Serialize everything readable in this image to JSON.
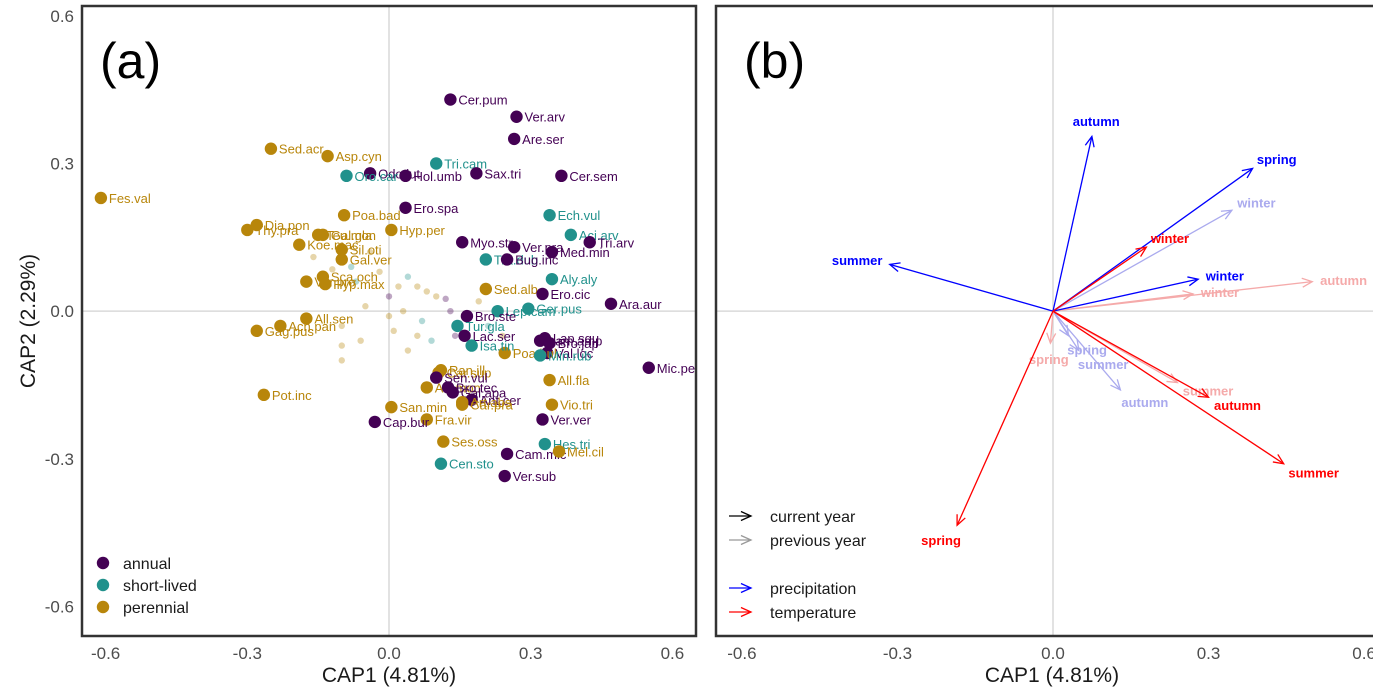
{
  "chart_data": [
    {
      "panel": "(a)",
      "type": "scatter",
      "xlabel": "CAP1 (4.81%)",
      "ylabel": "CAP2 (2.29%)",
      "xlim": [
        -0.65,
        0.65
      ],
      "ylim": [
        -0.66,
        0.62
      ],
      "xticks": [
        "-0.6",
        "-0.3",
        "0.0",
        "0.3",
        "0.6"
      ],
      "yticks": [
        "-0.6",
        "-0.3",
        "0.0",
        "0.3",
        "0.6"
      ],
      "grid": false,
      "legend_position": "bottom-left",
      "group_colors": {
        "annual": "#440154",
        "short-lived": "#21918c",
        "perennial": "#b8860b"
      },
      "legend": [
        "annual",
        "short-lived",
        "perennial"
      ],
      "points": [
        {
          "label": "Cer.pum",
          "x": 0.13,
          "y": 0.43,
          "group": "annual"
        },
        {
          "label": "Ver.arv",
          "x": 0.27,
          "y": 0.395,
          "group": "annual"
        },
        {
          "label": "Are.ser",
          "x": 0.265,
          "y": 0.35,
          "group": "annual"
        },
        {
          "label": "Sed.acr",
          "x": -0.25,
          "y": 0.33,
          "group": "perennial"
        },
        {
          "label": "Asp.cyn",
          "x": -0.13,
          "y": 0.315,
          "group": "perennial"
        },
        {
          "label": "Tri.cam",
          "x": 0.1,
          "y": 0.3,
          "group": "short-lived"
        },
        {
          "label": "Odo.lut",
          "x": -0.04,
          "y": 0.28,
          "group": "annual"
        },
        {
          "label": "Hol.umb",
          "x": 0.035,
          "y": 0.275,
          "group": "annual"
        },
        {
          "label": "Sax.tri",
          "x": 0.185,
          "y": 0.28,
          "group": "annual"
        },
        {
          "label": "Oro.car",
          "x": -0.09,
          "y": 0.275,
          "group": "short-lived"
        },
        {
          "label": "Cer.sem",
          "x": 0.365,
          "y": 0.275,
          "group": "annual"
        },
        {
          "label": "Fes.val",
          "x": -0.61,
          "y": 0.23,
          "group": "perennial"
        },
        {
          "label": "Ero.spa",
          "x": 0.035,
          "y": 0.21,
          "group": "annual"
        },
        {
          "label": "Thy.pra",
          "x": -0.3,
          "y": 0.165,
          "group": "perennial"
        },
        {
          "label": "Dia.pon",
          "x": -0.28,
          "y": 0.175,
          "group": "perennial"
        },
        {
          "label": "Teu.mon",
          "x": -0.15,
          "y": 0.155,
          "group": "perennial"
        },
        {
          "label": "Poa.bad",
          "x": -0.095,
          "y": 0.195,
          "group": "perennial"
        },
        {
          "label": "Koe.mac",
          "x": -0.19,
          "y": 0.135,
          "group": "perennial"
        },
        {
          "label": "Gal.gla",
          "x": -0.14,
          "y": 0.155,
          "group": "perennial"
        },
        {
          "label": "Hyp.per",
          "x": 0.005,
          "y": 0.165,
          "group": "perennial"
        },
        {
          "label": "Myo.str",
          "x": 0.155,
          "y": 0.14,
          "group": "annual"
        },
        {
          "label": "Ver.pra",
          "x": 0.265,
          "y": 0.13,
          "group": "annual"
        },
        {
          "label": "Ech.vul",
          "x": 0.34,
          "y": 0.195,
          "group": "short-lived"
        },
        {
          "label": "Aci.arv",
          "x": 0.385,
          "y": 0.155,
          "group": "short-lived"
        },
        {
          "label": "Tri.arv",
          "x": 0.425,
          "y": 0.14,
          "group": "annual"
        },
        {
          "label": "Med.min",
          "x": 0.345,
          "y": 0.12,
          "group": "annual"
        },
        {
          "label": "Sil.oti",
          "x": -0.1,
          "y": 0.125,
          "group": "perennial"
        },
        {
          "label": "Gal.ver",
          "x": -0.1,
          "y": 0.105,
          "group": "perennial"
        },
        {
          "label": "Tra.dub",
          "x": 0.205,
          "y": 0.105,
          "group": "short-lived"
        },
        {
          "label": "Ver.pro",
          "x": -0.175,
          "y": 0.06,
          "group": "perennial"
        },
        {
          "label": "Sca.och",
          "x": -0.14,
          "y": 0.07,
          "group": "perennial"
        },
        {
          "label": "Hyp.max",
          "x": -0.135,
          "y": 0.055,
          "group": "perennial"
        },
        {
          "label": "Bug.inc",
          "x": 0.25,
          "y": 0.105,
          "group": "annual"
        },
        {
          "label": "Aly.aly",
          "x": 0.345,
          "y": 0.065,
          "group": "short-lived"
        },
        {
          "label": "Sed.alb",
          "x": 0.205,
          "y": 0.045,
          "group": "perennial"
        },
        {
          "label": "Ero.cic",
          "x": 0.325,
          "y": 0.035,
          "group": "annual"
        },
        {
          "label": "Lep.cam",
          "x": 0.23,
          "y": 0.0,
          "group": "short-lived"
        },
        {
          "label": "Ger.pus",
          "x": 0.295,
          "y": 0.005,
          "group": "short-lived"
        },
        {
          "label": "Ara.aur",
          "x": 0.47,
          "y": 0.015,
          "group": "annual"
        },
        {
          "label": "Bro.ste",
          "x": 0.165,
          "y": -0.01,
          "group": "annual"
        },
        {
          "label": "All.sen",
          "x": -0.175,
          "y": -0.015,
          "group": "perennial"
        },
        {
          "label": "Ach.pan",
          "x": -0.23,
          "y": -0.03,
          "group": "perennial"
        },
        {
          "label": "Gag.pus",
          "x": -0.28,
          "y": -0.04,
          "group": "perennial"
        },
        {
          "label": "Tur.gla",
          "x": 0.145,
          "y": -0.03,
          "group": "short-lived"
        },
        {
          "label": "Lac.ser",
          "x": 0.16,
          "y": -0.05,
          "group": "annual"
        },
        {
          "label": "Lam.amp",
          "x": 0.32,
          "y": -0.06,
          "group": "annual"
        },
        {
          "label": "Lap.squ",
          "x": 0.33,
          "y": -0.055,
          "group": "annual"
        },
        {
          "label": "Bro.jap",
          "x": 0.34,
          "y": -0.065,
          "group": "annual"
        },
        {
          "label": "Val.loc",
          "x": 0.335,
          "y": -0.085,
          "group": "annual"
        },
        {
          "label": "Poa.bul",
          "x": 0.245,
          "y": -0.085,
          "group": "perennial"
        },
        {
          "label": "Isa.tin",
          "x": 0.175,
          "y": -0.07,
          "group": "short-lived"
        },
        {
          "label": "Min.rub",
          "x": 0.32,
          "y": -0.09,
          "group": "short-lived"
        },
        {
          "label": "Mic.per",
          "x": 0.55,
          "y": -0.115,
          "group": "annual"
        },
        {
          "label": "Ran.ill",
          "x": 0.11,
          "y": -0.12,
          "group": "perennial"
        },
        {
          "label": "Car.sup",
          "x": 0.105,
          "y": -0.125,
          "group": "perennial"
        },
        {
          "label": "Sen.vul",
          "x": 0.1,
          "y": -0.135,
          "group": "annual"
        },
        {
          "label": "Aly.mon",
          "x": 0.08,
          "y": -0.155,
          "group": "perennial"
        },
        {
          "label": "Bro.tec",
          "x": 0.125,
          "y": -0.155,
          "group": "annual"
        },
        {
          "label": "All.fla",
          "x": 0.34,
          "y": -0.14,
          "group": "perennial"
        },
        {
          "label": "Pot.inc",
          "x": -0.265,
          "y": -0.17,
          "group": "perennial"
        },
        {
          "label": "Gal.apa",
          "x": 0.135,
          "y": -0.165,
          "group": "annual"
        },
        {
          "label": "Ant.cer",
          "x": 0.175,
          "y": -0.18,
          "group": "annual"
        },
        {
          "label": "San.min",
          "x": 0.005,
          "y": -0.195,
          "group": "perennial"
        },
        {
          "label": "Art.abs",
          "x": 0.155,
          "y": -0.185,
          "group": "perennial"
        },
        {
          "label": "Car.pra",
          "x": 0.155,
          "y": -0.19,
          "group": "perennial"
        },
        {
          "label": "Vio.tri",
          "x": 0.345,
          "y": -0.19,
          "group": "perennial"
        },
        {
          "label": "Fra.vir",
          "x": 0.08,
          "y": -0.22,
          "group": "perennial"
        },
        {
          "label": "Ver.ver",
          "x": 0.325,
          "y": -0.22,
          "group": "annual"
        },
        {
          "label": "Cap.bur",
          "x": -0.03,
          "y": -0.225,
          "group": "annual"
        },
        {
          "label": "Ses.oss",
          "x": 0.115,
          "y": -0.265,
          "group": "perennial"
        },
        {
          "label": "Hes.tri",
          "x": 0.33,
          "y": -0.27,
          "group": "short-lived"
        },
        {
          "label": "Cam.mic",
          "x": 0.25,
          "y": -0.29,
          "group": "annual"
        },
        {
          "label": "Mel.cil",
          "x": 0.36,
          "y": -0.285,
          "group": "perennial"
        },
        {
          "label": "Cen.sto",
          "x": 0.11,
          "y": -0.31,
          "group": "short-lived"
        },
        {
          "label": "Ver.sub",
          "x": 0.245,
          "y": -0.335,
          "group": "annual"
        }
      ],
      "faint_points": [
        {
          "x": -0.16,
          "y": 0.11,
          "group": "perennial"
        },
        {
          "x": -0.12,
          "y": 0.085,
          "group": "perennial"
        },
        {
          "x": -0.08,
          "y": 0.09,
          "group": "short-lived"
        },
        {
          "x": -0.07,
          "y": 0.06,
          "group": "short-lived"
        },
        {
          "x": -0.02,
          "y": 0.08,
          "group": "perennial"
        },
        {
          "x": 0.02,
          "y": 0.05,
          "group": "perennial"
        },
        {
          "x": 0.04,
          "y": 0.07,
          "group": "short-lived"
        },
        {
          "x": 0.06,
          "y": 0.05,
          "group": "perennial"
        },
        {
          "x": 0.08,
          "y": 0.04,
          "group": "perennial"
        },
        {
          "x": 0.1,
          "y": 0.03,
          "group": "perennial"
        },
        {
          "x": 0.12,
          "y": 0.025,
          "group": "annual"
        },
        {
          "x": -0.05,
          "y": 0.01,
          "group": "perennial"
        },
        {
          "x": 0.0,
          "y": -0.01,
          "group": "perennial"
        },
        {
          "x": 0.03,
          "y": 0.0,
          "group": "perennial"
        },
        {
          "x": 0.07,
          "y": -0.02,
          "group": "short-lived"
        },
        {
          "x": -0.1,
          "y": -0.03,
          "group": "perennial"
        },
        {
          "x": -0.06,
          "y": -0.06,
          "group": "perennial"
        },
        {
          "x": -0.1,
          "y": -0.07,
          "group": "perennial"
        },
        {
          "x": -0.1,
          "y": -0.1,
          "group": "perennial"
        },
        {
          "x": 0.01,
          "y": -0.04,
          "group": "perennial"
        },
        {
          "x": 0.06,
          "y": -0.05,
          "group": "perennial"
        },
        {
          "x": 0.04,
          "y": -0.08,
          "group": "perennial"
        },
        {
          "x": 0.09,
          "y": -0.06,
          "group": "short-lived"
        },
        {
          "x": 0.14,
          "y": -0.05,
          "group": "annual"
        },
        {
          "x": 0.13,
          "y": 0.0,
          "group": "annual"
        },
        {
          "x": 0.19,
          "y": 0.02,
          "group": "perennial"
        },
        {
          "x": 0.21,
          "y": -0.03,
          "group": "short-lived"
        },
        {
          "x": 0.24,
          "y": -0.05,
          "group": "perennial"
        },
        {
          "x": -0.04,
          "y": 0.12,
          "group": "perennial"
        },
        {
          "x": 0.0,
          "y": 0.03,
          "group": "annual"
        }
      ]
    },
    {
      "panel": "(b)",
      "type": "biplot",
      "xlabel": "CAP1 (4.81%)",
      "xlim": [
        -0.65,
        0.65
      ],
      "ylim": [
        -0.66,
        0.62
      ],
      "xticks": [
        "-0.6",
        "-0.3",
        "0.0",
        "0.3",
        "0.6"
      ],
      "grid": false,
      "legend_position": "bottom-left",
      "colors": {
        "precipitation": "#0000ff",
        "temperature": "#ff0000",
        "precipitation_previous": "#aaaaee",
        "temperature_previous": "#f5aaaa"
      },
      "legend_line_colors": {
        "current": "#000000",
        "previous": "#999999"
      },
      "legend_year": [
        "current year",
        "previous year"
      ],
      "legend_var": [
        "precipitation",
        "temperature"
      ],
      "arrows": [
        {
          "label": "autumn",
          "x": 0.075,
          "y": 0.355,
          "variable": "precipitation",
          "year": "current"
        },
        {
          "label": "spring",
          "x": 0.385,
          "y": 0.29,
          "variable": "precipitation",
          "year": "current"
        },
        {
          "label": "summer",
          "x": -0.315,
          "y": 0.095,
          "variable": "precipitation",
          "year": "current"
        },
        {
          "label": "winter",
          "x": 0.28,
          "y": 0.065,
          "variable": "precipitation",
          "year": "current"
        },
        {
          "label": "winter",
          "x": 0.18,
          "y": 0.13,
          "variable": "temperature",
          "year": "current"
        },
        {
          "label": "autumn",
          "x": 0.3,
          "y": -0.175,
          "variable": "temperature",
          "year": "current"
        },
        {
          "label": "summer",
          "x": 0.445,
          "y": -0.31,
          "variable": "temperature",
          "year": "current"
        },
        {
          "label": "spring",
          "x": -0.185,
          "y": -0.435,
          "variable": "temperature",
          "year": "current"
        },
        {
          "label": "winter",
          "x": 0.345,
          "y": 0.205,
          "variable": "precipitation",
          "year": "previous"
        },
        {
          "label": "spring",
          "x": 0.03,
          "y": -0.05,
          "variable": "precipitation",
          "year": "previous"
        },
        {
          "label": "summer",
          "x": 0.05,
          "y": -0.08,
          "variable": "precipitation",
          "year": "previous"
        },
        {
          "label": "autumn",
          "x": 0.13,
          "y": -0.16,
          "variable": "precipitation",
          "year": "previous"
        },
        {
          "label": "autumn",
          "x": 0.5,
          "y": 0.06,
          "variable": "temperature",
          "year": "previous"
        },
        {
          "label": "winter",
          "x": 0.27,
          "y": 0.035,
          "variable": "temperature",
          "year": "previous"
        },
        {
          "label": "spring",
          "x": -0.005,
          "y": -0.065,
          "variable": "temperature",
          "year": "previous"
        },
        {
          "label": "summer",
          "x": 0.24,
          "y": -0.145,
          "variable": "temperature",
          "year": "previous"
        }
      ]
    }
  ]
}
